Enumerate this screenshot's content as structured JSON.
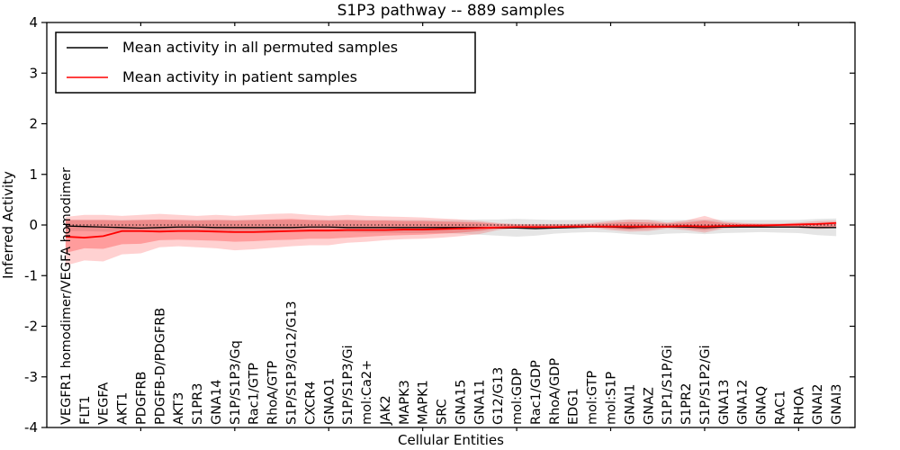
{
  "figure": {
    "title": "S1P3 pathway -- 889 samples"
  },
  "chart_data": {
    "type": "line",
    "title": "S1P3 pathway -- 889 samples",
    "xlabel": "Cellular Entities",
    "ylabel": "Inferred Activity",
    "ylim": [
      -4,
      4
    ],
    "yticks": [
      4,
      3,
      2,
      1,
      0,
      -1,
      -2,
      -3,
      -4
    ],
    "grid": false,
    "legend_position": "upper left",
    "zero_reference_line": {
      "y": 0,
      "style": "dotted",
      "color": "#000000"
    },
    "categories": [
      "VEGFR1 homodimer/VEGFA homodimer",
      "FLT1",
      "VEGFA",
      "AKT1",
      "PDGFRB",
      "PDGFB-D/PDGFRB",
      "AKT3",
      "S1PR3",
      "GNA14",
      "S1P/S1P3/Gq",
      "Rac1/GTP",
      "RhoA/GTP",
      "S1P/S1P3/G12/G13",
      "CXCR4",
      "GNAO1",
      "S1P/S1P3/Gi",
      "mol:Ca2+",
      "JAK2",
      "MAPK3",
      "MAPK1",
      "SRC",
      "GNA15",
      "GNA11",
      "G12/G13",
      "mol:GDP",
      "Rac1/GDP",
      "RhoA/GDP",
      "EDG1",
      "mol:GTP",
      "mol:S1P",
      "GNAI1",
      "GNAZ",
      "S1P1/S1P/Gi",
      "S1PR2",
      "S1P/S1P2/Gi",
      "GNA13",
      "GNA12",
      "GNAQ",
      "RAC1",
      "RHOA",
      "GNAI2",
      "GNAI3"
    ],
    "series": [
      {
        "name": "Mean activity in all permuted samples",
        "color": "#000000",
        "values": [
          -0.02,
          -0.03,
          -0.04,
          -0.05,
          -0.06,
          -0.05,
          -0.04,
          -0.04,
          -0.05,
          -0.05,
          -0.05,
          -0.05,
          -0.05,
          -0.04,
          -0.04,
          -0.05,
          -0.05,
          -0.05,
          -0.05,
          -0.05,
          -0.05,
          -0.05,
          -0.05,
          -0.06,
          -0.06,
          -0.07,
          -0.06,
          -0.05,
          -0.04,
          -0.04,
          -0.05,
          -0.04,
          -0.04,
          -0.04,
          -0.05,
          -0.04,
          -0.04,
          -0.04,
          -0.04,
          -0.04,
          -0.05,
          -0.05
        ]
      },
      {
        "name": "Mean activity in patient samples",
        "color": "#ff0000",
        "values": [
          -0.23,
          -0.25,
          -0.22,
          -0.12,
          -0.12,
          -0.13,
          -0.12,
          -0.12,
          -0.13,
          -0.14,
          -0.14,
          -0.13,
          -0.12,
          -0.11,
          -0.11,
          -0.1,
          -0.1,
          -0.1,
          -0.09,
          -0.09,
          -0.08,
          -0.07,
          -0.06,
          -0.05,
          -0.04,
          -0.04,
          -0.04,
          -0.03,
          -0.03,
          -0.03,
          -0.03,
          -0.03,
          -0.03,
          -0.02,
          -0.03,
          -0.02,
          -0.01,
          -0.01,
          0.0,
          0.01,
          0.02,
          0.04
        ]
      }
    ],
    "bands": [
      {
        "name": "permuted samples range",
        "color": "#000000",
        "opacity": 0.1,
        "upper": [
          0.1,
          0.1,
          0.1,
          0.1,
          0.1,
          0.1,
          0.1,
          0.1,
          0.1,
          0.1,
          0.1,
          0.1,
          0.1,
          0.1,
          0.1,
          0.1,
          0.1,
          0.1,
          0.1,
          0.1,
          0.1,
          0.1,
          0.11,
          0.11,
          0.12,
          0.11,
          0.1,
          0.1,
          0.1,
          0.1,
          0.11,
          0.11,
          0.1,
          0.1,
          0.11,
          0.1,
          0.1,
          0.1,
          0.1,
          0.1,
          0.12,
          0.13
        ],
        "lower": [
          -0.12,
          -0.12,
          -0.13,
          -0.14,
          -0.14,
          -0.13,
          -0.13,
          -0.13,
          -0.13,
          -0.14,
          -0.14,
          -0.13,
          -0.13,
          -0.13,
          -0.13,
          -0.14,
          -0.15,
          -0.15,
          -0.16,
          -0.16,
          -0.16,
          -0.17,
          -0.19,
          -0.21,
          -0.23,
          -0.21,
          -0.17,
          -0.15,
          -0.14,
          -0.15,
          -0.18,
          -0.2,
          -0.17,
          -0.16,
          -0.18,
          -0.16,
          -0.15,
          -0.14,
          -0.15,
          -0.16,
          -0.2,
          -0.22
        ]
      },
      {
        "name": "patient samples range (outer)",
        "color": "#ff0000",
        "opacity": 0.18,
        "upper": [
          0.16,
          0.2,
          0.2,
          0.18,
          0.2,
          0.22,
          0.2,
          0.18,
          0.2,
          0.18,
          0.2,
          0.22,
          0.23,
          0.2,
          0.18,
          0.2,
          0.18,
          0.17,
          0.16,
          0.15,
          0.13,
          0.11,
          0.08,
          0.04,
          0.02,
          0.02,
          0.02,
          0.02,
          0.04,
          0.08,
          0.11,
          0.1,
          0.05,
          0.09,
          0.18,
          0.07,
          0.04,
          0.03,
          0.03,
          0.05,
          0.08,
          0.09
        ],
        "lower": [
          -0.8,
          -0.7,
          -0.72,
          -0.58,
          -0.56,
          -0.44,
          -0.42,
          -0.44,
          -0.46,
          -0.5,
          -0.48,
          -0.45,
          -0.42,
          -0.4,
          -0.4,
          -0.35,
          -0.33,
          -0.3,
          -0.28,
          -0.27,
          -0.25,
          -0.22,
          -0.18,
          -0.1,
          -0.06,
          -0.06,
          -0.05,
          -0.05,
          -0.06,
          -0.1,
          -0.13,
          -0.12,
          -0.07,
          -0.1,
          -0.15,
          -0.07,
          -0.05,
          -0.04,
          -0.04,
          -0.06,
          -0.08,
          -0.06
        ]
      },
      {
        "name": "patient samples range (inner)",
        "color": "#ff0000",
        "opacity": 0.25,
        "upper": [
          0.1,
          0.1,
          0.1,
          0.09,
          0.1,
          0.11,
          0.1,
          0.09,
          0.1,
          0.09,
          0.1,
          0.11,
          0.12,
          0.1,
          0.09,
          0.1,
          0.09,
          0.09,
          0.08,
          0.08,
          0.07,
          0.06,
          0.05,
          0.02,
          0.01,
          0.01,
          0.01,
          0.01,
          0.02,
          0.04,
          0.06,
          0.05,
          0.03,
          0.05,
          0.09,
          0.04,
          0.02,
          0.02,
          0.02,
          0.03,
          0.04,
          0.05
        ],
        "lower": [
          -0.55,
          -0.46,
          -0.47,
          -0.38,
          -0.37,
          -0.3,
          -0.29,
          -0.3,
          -0.31,
          -0.33,
          -0.32,
          -0.3,
          -0.29,
          -0.27,
          -0.27,
          -0.25,
          -0.23,
          -0.21,
          -0.2,
          -0.19,
          -0.17,
          -0.15,
          -0.12,
          -0.07,
          -0.04,
          -0.04,
          -0.03,
          -0.03,
          -0.04,
          -0.07,
          -0.09,
          -0.08,
          -0.05,
          -0.07,
          -0.1,
          -0.05,
          -0.03,
          -0.03,
          -0.03,
          -0.04,
          -0.05,
          -0.04
        ]
      }
    ]
  }
}
